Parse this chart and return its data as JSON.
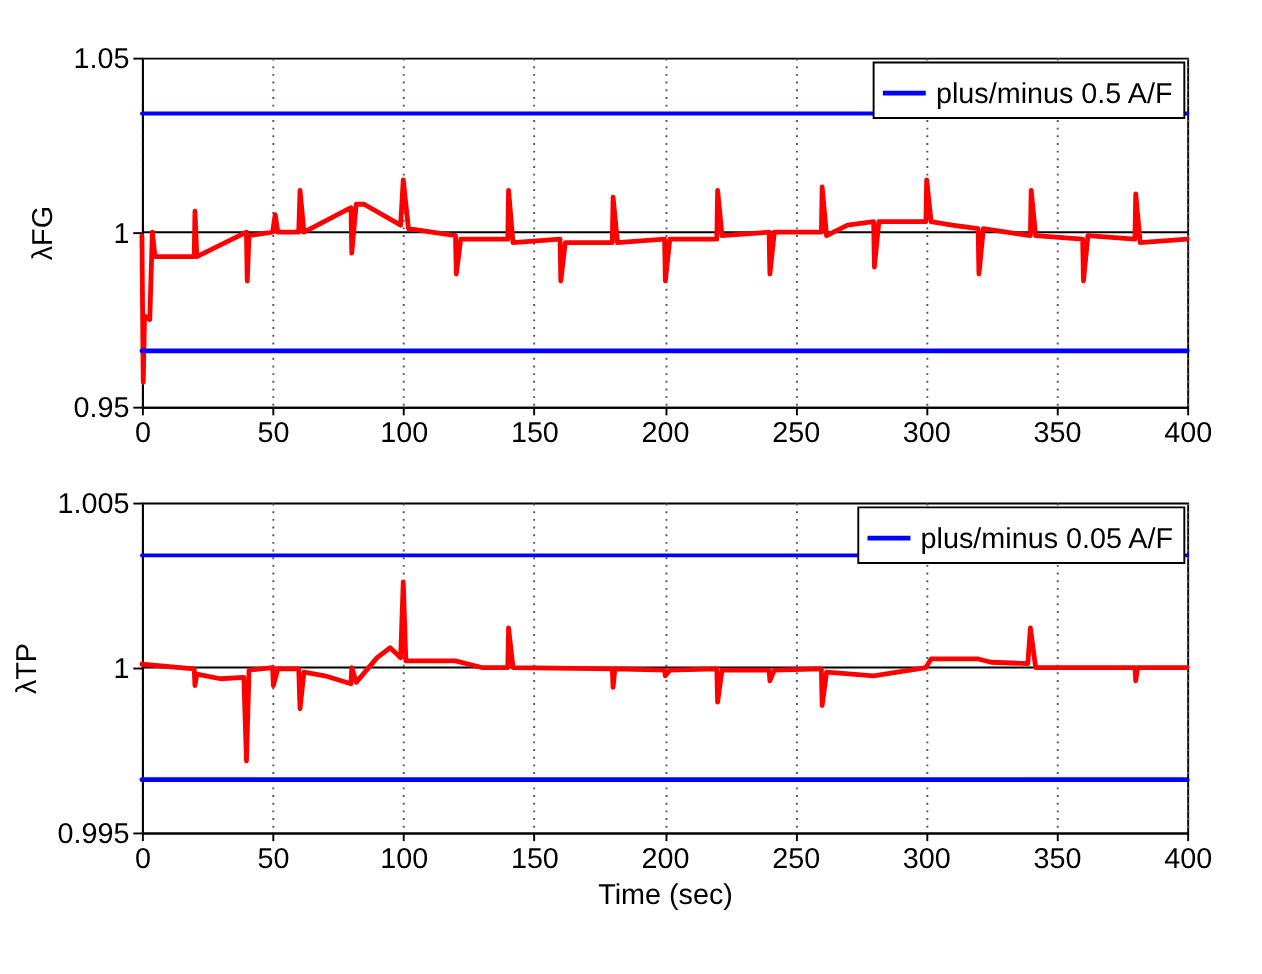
{
  "chart_data": [
    {
      "type": "line",
      "ylabel": "λFG",
      "xlim": [
        0,
        400
      ],
      "xticks": [
        0,
        50,
        100,
        150,
        200,
        250,
        300,
        350,
        400
      ],
      "ylim": [
        0.95,
        1.05
      ],
      "yticks": [
        0.95,
        1,
        1.05
      ],
      "grid": "x",
      "legend": "top right",
      "line_style": "solid",
      "marker": "none",
      "tick_labels": "xy",
      "ref_lines": [
        {
          "axis": "y",
          "value": 1,
          "color": "#000000"
        }
      ],
      "series": [
        {
          "color": "#ff0000",
          "x": [
            0,
            0.5,
            1,
            3,
            4,
            5,
            20,
            20.3,
            21,
            40,
            40.3,
            41,
            50,
            51,
            52,
            60,
            60.5,
            62,
            80,
            80.3,
            82,
            85,
            99,
            100,
            102,
            120,
            120.3,
            122,
            140,
            140.3,
            142,
            160,
            160.3,
            162,
            180,
            180.3,
            182,
            200,
            200.3,
            202,
            220,
            220.3,
            222,
            240,
            240.3,
            242,
            260,
            260.3,
            262,
            270,
            280,
            280.3,
            282,
            300,
            300.3,
            302,
            310,
            320,
            320.3,
            322,
            340,
            340.3,
            342,
            360,
            360.3,
            362,
            380,
            380.3,
            382,
            400
          ],
          "values": [
            0.999,
            0.957,
            0.976,
            0.975,
            1.0,
            0.993,
            0.993,
            1.006,
            0.993,
            1.0,
            0.986,
            0.999,
            1.0,
            1.005,
            1.0,
            1.0,
            1.012,
            1.0,
            1.007,
            0.994,
            1.008,
            1.008,
            1.002,
            1.015,
            1.001,
            0.999,
            0.988,
            0.998,
            0.998,
            1.012,
            0.997,
            0.998,
            0.986,
            0.997,
            0.997,
            1.01,
            0.997,
            0.998,
            0.986,
            0.998,
            0.998,
            1.012,
            0.999,
            1.0,
            0.988,
            1.0,
            1.0,
            1.013,
            0.999,
            1.002,
            1.003,
            0.99,
            1.003,
            1.003,
            1.015,
            1.003,
            1.002,
            1.001,
            0.988,
            1.001,
            0.999,
            1.012,
            0.999,
            0.998,
            0.986,
            0.999,
            0.998,
            1.011,
            0.997,
            0.998
          ]
        },
        {
          "name": "plus/minus 0.5 A/F",
          "color": "#0000ff",
          "x": [
            0,
            400
          ],
          "values": [
            1.034,
            1.034
          ]
        },
        {
          "color": "#0000ff",
          "x": [
            0,
            400
          ],
          "values": [
            0.966,
            0.966
          ]
        }
      ]
    },
    {
      "type": "line",
      "ylabel": "λTP",
      "xlabel": "Time (sec)",
      "xlim": [
        0,
        400
      ],
      "xticks": [
        0,
        50,
        100,
        150,
        200,
        250,
        300,
        350,
        400
      ],
      "ylim": [
        0.995,
        1.005
      ],
      "yticks": [
        0.995,
        1,
        1.005
      ],
      "grid": "x",
      "legend": "top right",
      "line_style": "solid",
      "marker": "none",
      "tick_labels": "xy",
      "ref_lines": [
        {
          "axis": "y",
          "value": 1,
          "color": "#000000"
        }
      ],
      "series": [
        {
          "color": "#ff0000",
          "x": [
            0,
            20,
            20.3,
            21,
            30,
            39,
            40,
            41,
            50,
            50.3,
            52,
            60,
            60.5,
            62,
            70,
            80,
            80.3,
            82,
            90,
            95,
            99,
            100,
            101,
            120,
            130,
            140,
            140.3,
            142,
            180,
            180.3,
            181,
            200,
            200.3,
            202,
            220,
            220.3,
            222,
            240,
            240.3,
            242,
            260,
            260.3,
            262,
            280,
            300,
            302,
            320,
            325,
            339,
            340,
            342,
            380,
            380.3,
            381,
            400
          ],
          "values": [
            1.0001,
            0.99996,
            0.99945,
            0.9998,
            0.99966,
            0.9997,
            0.99717,
            0.99992,
            1.0,
            0.99945,
            0.99996,
            0.99996,
            0.99875,
            0.99986,
            0.99975,
            0.99951,
            1.0,
            0.99955,
            1.0003,
            1.0006,
            1.0003,
            1.0026,
            1.0002,
            1.0002,
            1.0,
            1.0,
            1.0012,
            1.0,
            0.99996,
            0.9994,
            0.99996,
            0.99992,
            0.99975,
            0.99992,
            0.99996,
            0.99895,
            0.99992,
            0.99992,
            0.9996,
            0.99992,
            0.99996,
            0.99885,
            0.99986,
            0.99975,
            1.0,
            1.00026,
            1.00026,
            1.00016,
            1.00012,
            1.0012,
            1.0,
            1.0,
            0.9996,
            1.0,
            1.0
          ]
        },
        {
          "name": "plus/minus 0.05 A/F",
          "color": "#0000ff",
          "x": [
            0,
            400
          ],
          "values": [
            1.0034,
            1.0034
          ]
        },
        {
          "color": "#0000ff",
          "x": [
            0,
            400
          ],
          "values": [
            0.9966,
            0.9966
          ]
        }
      ]
    }
  ]
}
